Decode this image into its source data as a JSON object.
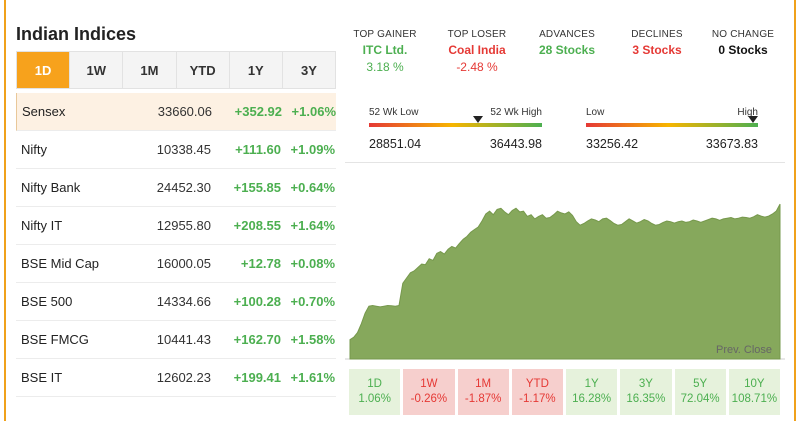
{
  "title": "Indian Indices",
  "tabs": [
    "1D",
    "1W",
    "1M",
    "YTD",
    "1Y",
    "3Y"
  ],
  "active_tab": "1D",
  "indices": [
    {
      "name": "Sensex",
      "value": "33660.06",
      "change": "+352.92",
      "percent": "+1.06%"
    },
    {
      "name": "Nifty",
      "value": "10338.45",
      "change": "+111.60",
      "percent": "+1.09%"
    },
    {
      "name": "Nifty Bank",
      "value": "24452.30",
      "change": "+155.85",
      "percent": "+0.64%"
    },
    {
      "name": "Nifty IT",
      "value": "12955.80",
      "change": "+208.55",
      "percent": "+1.64%"
    },
    {
      "name": "BSE Mid Cap",
      "value": "16000.05",
      "change": "+12.78",
      "percent": "+0.08%"
    },
    {
      "name": "BSE 500",
      "value": "14334.66",
      "change": "+100.28",
      "percent": "+0.70%"
    },
    {
      "name": "BSE FMCG",
      "value": "10441.43",
      "change": "+162.70",
      "percent": "+1.58%"
    },
    {
      "name": "BSE IT",
      "value": "12602.23",
      "change": "+199.41",
      "percent": "+1.61%"
    }
  ],
  "stats": {
    "top_gainer": {
      "label": "TOP GAINER",
      "name": "ITC Ltd.",
      "percent": "3.18 %"
    },
    "top_loser": {
      "label": "TOP LOSER",
      "name": "Coal India",
      "percent": "-2.48 %"
    },
    "advances": {
      "label": "ADVANCES",
      "value": "28 Stocks"
    },
    "declines": {
      "label": "DECLINES",
      "value": "3 Stocks"
    },
    "no_change": {
      "label": "NO CHANGE",
      "value": "0 Stocks"
    }
  },
  "wk52": {
    "low_label": "52 Wk Low",
    "high_label": "52 Wk High",
    "low": "28851.04",
    "high": "36443.98",
    "position": 0.63
  },
  "day": {
    "low_label": "Low",
    "high_label": "High",
    "low": "33256.42",
    "high": "33673.83",
    "position": 0.97
  },
  "chart_data": {
    "type": "area",
    "color": "#86a85c",
    "prev_close_label": "Prev. Close",
    "ylim": [
      33200,
      33700
    ],
    "values": [
      33255,
      33262,
      33275,
      33300,
      33330,
      33350,
      33352,
      33350,
      33348,
      33350,
      33352,
      33351,
      33350,
      33352,
      33415,
      33430,
      33445,
      33450,
      33460,
      33470,
      33468,
      33485,
      33480,
      33500,
      33505,
      33498,
      33512,
      33520,
      33515,
      33528,
      33540,
      33548,
      33560,
      33568,
      33575,
      33592,
      33612,
      33620,
      33610,
      33625,
      33628,
      33618,
      33610,
      33622,
      33628,
      33618,
      33620,
      33605,
      33610,
      33598,
      33605,
      33610,
      33600,
      33602,
      33610,
      33620,
      33615,
      33612,
      33618,
      33608,
      33590,
      33580,
      33585,
      33592,
      33598,
      33595,
      33590,
      33598,
      33600,
      33593,
      33585,
      33580,
      33582,
      33590,
      33598,
      33592,
      33586,
      33590,
      33596,
      33592,
      33585,
      33580,
      33582,
      33588,
      33592,
      33590,
      33586,
      33590,
      33592,
      33588,
      33590,
      33595,
      33592,
      33588,
      33592,
      33596,
      33600,
      33598,
      33594,
      33598,
      33600,
      33602,
      33598,
      33600,
      33603,
      33602,
      33600,
      33604,
      33610,
      33606,
      33603,
      33606,
      33612,
      33620,
      33640
    ]
  },
  "performance": [
    {
      "period": "1D",
      "value": "1.06%",
      "trend": "pos"
    },
    {
      "period": "1W",
      "value": "-0.26%",
      "trend": "neg"
    },
    {
      "period": "1M",
      "value": "-1.87%",
      "trend": "neg"
    },
    {
      "period": "YTD",
      "value": "-1.17%",
      "trend": "neg"
    },
    {
      "period": "1Y",
      "value": "16.28%",
      "trend": "pos"
    },
    {
      "period": "3Y",
      "value": "16.35%",
      "trend": "pos"
    },
    {
      "period": "5Y",
      "value": "72.04%",
      "trend": "pos"
    },
    {
      "period": "10Y",
      "value": "108.71%",
      "trend": "pos"
    }
  ]
}
